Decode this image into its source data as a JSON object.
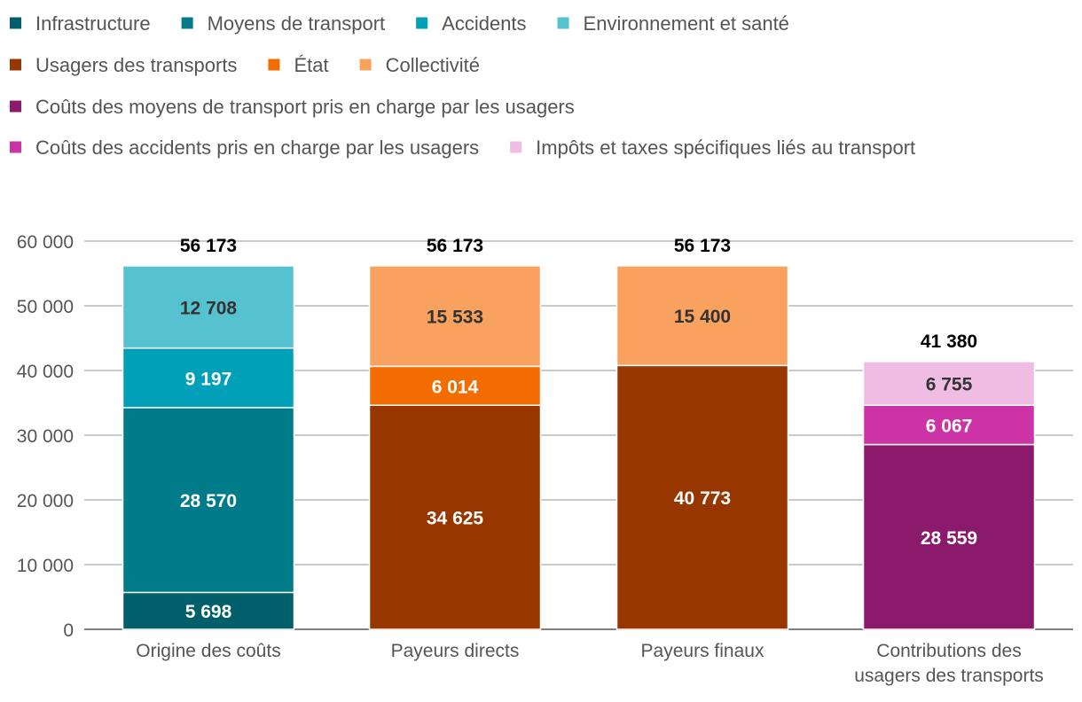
{
  "chart_data": {
    "type": "bar",
    "stacked": true,
    "title": "",
    "xlabel": "",
    "ylabel": "",
    "ylim": [
      0,
      60000
    ],
    "yticks": [
      0,
      10000,
      20000,
      30000,
      40000,
      50000,
      60000
    ],
    "ytick_labels": [
      "0",
      "10 000",
      "20 000",
      "30 000",
      "40 000",
      "50 000",
      "60 000"
    ],
    "grid": true,
    "legend_position": "top",
    "legend": [
      {
        "name": "Infrastructure",
        "color": "#005f6b"
      },
      {
        "name": "Moyens de transport",
        "color": "#007b8a"
      },
      {
        "name": "Accidents",
        "color": "#00a0b8"
      },
      {
        "name": "Environnement et santé",
        "color": "#56c1cf"
      },
      {
        "name": "Usagers des transports",
        "color": "#983600"
      },
      {
        "name": "État",
        "color": "#f36c00"
      },
      {
        "name": "Collectivité",
        "color": "#f9a25f"
      },
      {
        "name": "Coûts des moyens de transport pris en charge par les usagers",
        "color": "#8b1a6c"
      },
      {
        "name": "Coûts des accidents pris en charge par les usagers",
        "color": "#cc33a6"
      },
      {
        "name": "Impôts et taxes spécifiques liés au transport",
        "color": "#efbde3"
      }
    ],
    "categories": [
      {
        "label_lines": [
          "Origine des coûts"
        ],
        "total": 56173,
        "total_label": "56 173",
        "segments": [
          {
            "series": "Infrastructure",
            "value": 5698,
            "label": "5 698",
            "color": "#005f6b",
            "text_color": "#ffffff"
          },
          {
            "series": "Moyens de transport",
            "value": 28570,
            "label": "28 570",
            "color": "#007b8a",
            "text_color": "#ffffff"
          },
          {
            "series": "Accidents",
            "value": 9197,
            "label": "9 197",
            "color": "#00a0b8",
            "text_color": "#ffffff"
          },
          {
            "series": "Environnement et santé",
            "value": 12708,
            "label": "12 708",
            "color": "#56c1cf",
            "text_color": "#333333"
          }
        ]
      },
      {
        "label_lines": [
          "Payeurs directs"
        ],
        "total": 56173,
        "total_label": "56 173",
        "segments": [
          {
            "series": "Usagers des transports",
            "value": 34625,
            "label": "34 625",
            "color": "#983600",
            "text_color": "#ffffff"
          },
          {
            "series": "État",
            "value": 6014,
            "label": "6 014",
            "color": "#f36c00",
            "text_color": "#ffffff"
          },
          {
            "series": "Collectivité",
            "value": 15533,
            "label": "15 533",
            "color": "#f9a25f",
            "text_color": "#333333"
          }
        ]
      },
      {
        "label_lines": [
          "Payeurs finaux"
        ],
        "total": 56173,
        "total_label": "56 173",
        "segments": [
          {
            "series": "Usagers des transports",
            "value": 40773,
            "label": "40 773",
            "color": "#983600",
            "text_color": "#ffffff"
          },
          {
            "series": "Collectivité",
            "value": 15400,
            "label": "15 400",
            "color": "#f9a25f",
            "text_color": "#333333"
          }
        ]
      },
      {
        "label_lines": [
          "Contributions des",
          "usagers des transports"
        ],
        "total": 41380,
        "total_label": "41 380",
        "segments": [
          {
            "series": "Coûts des moyens de transport pris en charge par les usagers",
            "value": 28559,
            "label": "28 559",
            "color": "#8b1a6c",
            "text_color": "#ffffff"
          },
          {
            "series": "Coûts des accidents pris en charge par les usagers",
            "value": 6067,
            "label": "6 067",
            "color": "#cc33a6",
            "text_color": "#ffffff"
          },
          {
            "series": "Impôts et taxes spécifiques liés au transport",
            "value": 6755,
            "label": "6 755",
            "color": "#efbde3",
            "text_color": "#333333"
          }
        ]
      }
    ]
  }
}
